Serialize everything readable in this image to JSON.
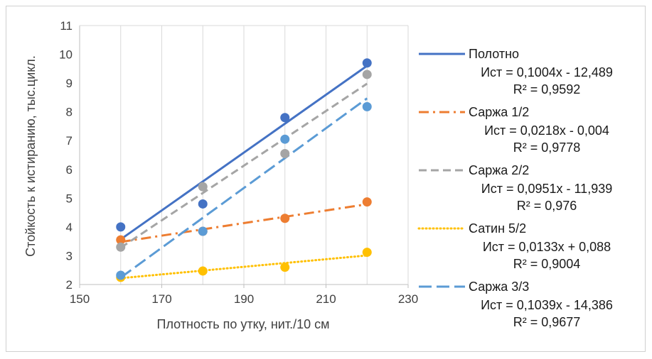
{
  "chart_data": {
    "type": "scatter",
    "title": "",
    "xlabel": "Плотность по утку, нит./10 см",
    "ylabel": "Стойкость к истиранию, тыс.цикл.",
    "xlim": [
      150,
      230
    ],
    "ylim": [
      2,
      11
    ],
    "xticks": [
      "150",
      "170",
      "190",
      "210",
      "230"
    ],
    "yticks": [
      "2",
      "3",
      "4",
      "5",
      "6",
      "7",
      "8",
      "9",
      "10",
      "11"
    ],
    "grid": "vertical",
    "legend": "right",
    "series": [
      {
        "name": "Полотно",
        "color": "#4472C4",
        "dash": "solid",
        "x": [
          160,
          180,
          200,
          220
        ],
        "y": [
          4.0,
          4.8,
          7.8,
          9.7
        ],
        "trend_x": [
          160,
          220
        ],
        "trend_y": [
          3.57,
          9.6
        ],
        "equation": "Ист = 0,1004x - 12,489",
        "r2": "R² = 0,9592"
      },
      {
        "name": "Саржа 1/2",
        "color": "#ED7D31",
        "dash": "dashdot",
        "x": [
          160,
          180,
          200,
          220
        ],
        "y": [
          3.55,
          3.85,
          4.3,
          4.87
        ],
        "trend_x": [
          160,
          220
        ],
        "trend_y": [
          3.48,
          4.79
        ],
        "equation": "Ист = 0,0218x - 0,004",
        "r2": "R² = 0,9778"
      },
      {
        "name": "Саржа 2/2",
        "color": "#A5A5A5",
        "dash": "dash",
        "x": [
          160,
          180,
          200,
          220
        ],
        "y": [
          3.3,
          5.4,
          6.55,
          9.3
        ],
        "trend_x": [
          160,
          220
        ],
        "trend_y": [
          3.28,
          8.98
        ],
        "equation": "Ист = 0,0951x - 11,939",
        "r2": "R² = 0,976"
      },
      {
        "name": "Сатин 5/2",
        "color": "#FFC000",
        "dash": "dot",
        "x": [
          160,
          180,
          200,
          220
        ],
        "y": [
          2.25,
          2.47,
          2.6,
          3.12
        ],
        "trend_x": [
          160,
          220
        ],
        "trend_y": [
          2.22,
          3.01
        ],
        "equation": "Ист = 0,0133x + 0,088",
        "r2": "R² = 0,9004"
      },
      {
        "name": "Саржа 3/3",
        "color": "#5B9BD5",
        "dash": "longdash",
        "x": [
          160,
          180,
          200,
          220
        ],
        "y": [
          2.32,
          3.85,
          7.05,
          8.18
        ],
        "trend_x": [
          160,
          220
        ],
        "trend_y": [
          2.24,
          8.47
        ],
        "equation": "Ист = 0,1039x - 14,386",
        "r2": "R² = 0,9677"
      }
    ]
  }
}
